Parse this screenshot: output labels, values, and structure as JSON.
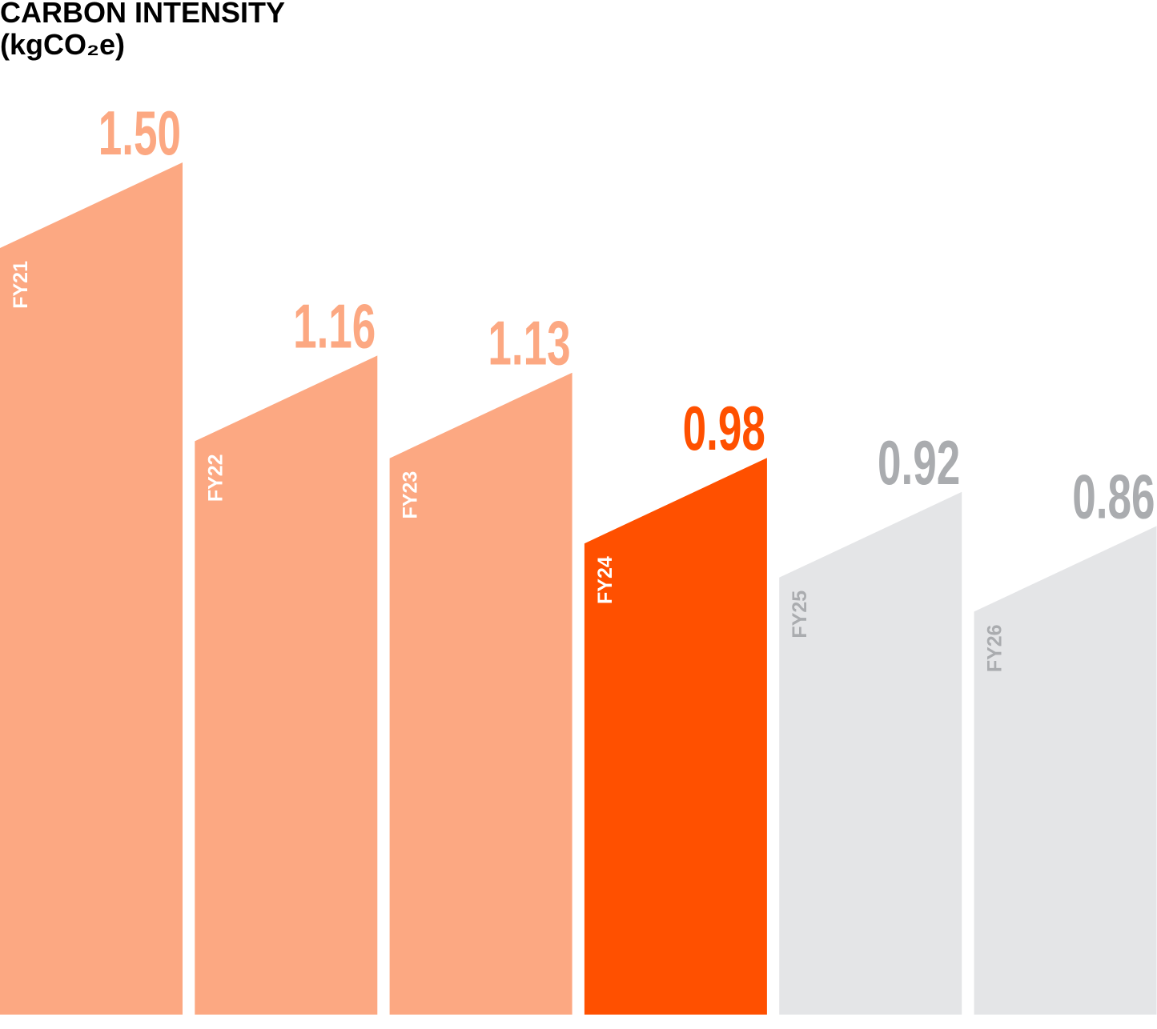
{
  "chart_data": {
    "type": "bar",
    "title": "CARBON INTENSITY",
    "subtitle": "(kgCO₂e)",
    "categories": [
      "FY21",
      "FY22",
      "FY23",
      "FY24",
      "FY25",
      "FY26"
    ],
    "values": [
      1.5,
      1.16,
      1.13,
      0.98,
      0.92,
      0.86
    ],
    "value_labels": [
      "1.50",
      "1.16",
      "1.13",
      "0.98",
      "0.92",
      "0.86"
    ],
    "bar_states": [
      "past",
      "past",
      "past",
      "current",
      "target",
      "target"
    ],
    "colors": {
      "past": "#FCA882",
      "current": "#FF5000",
      "target": "#E4E5E7",
      "target_label": "#AAACAF",
      "category_label_on_color": "#FFFFFF"
    },
    "xlabel": "",
    "ylabel": "",
    "grid": false,
    "legend": "none"
  }
}
